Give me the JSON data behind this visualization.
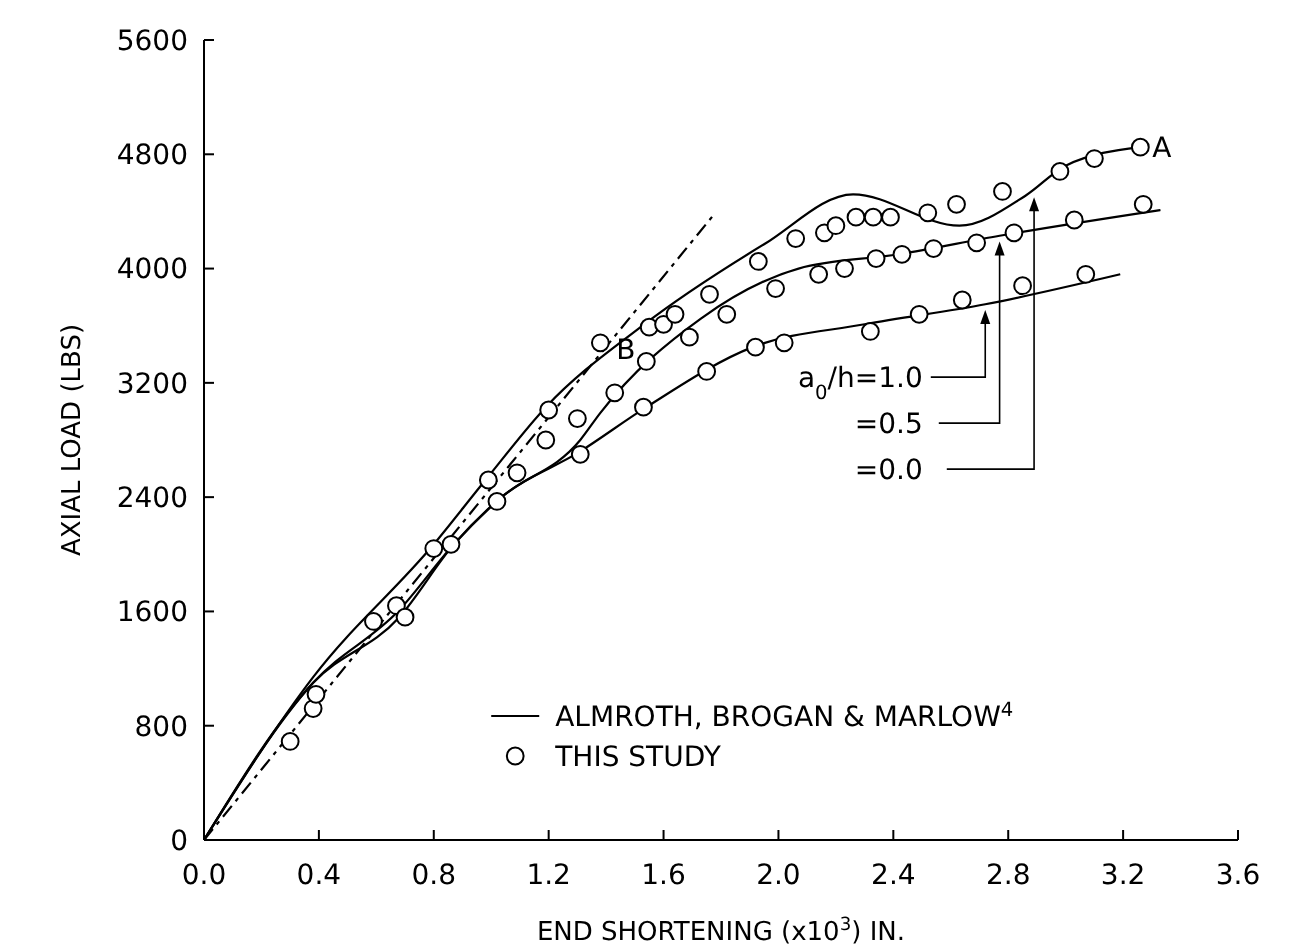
{
  "chart_data": {
    "type": "line",
    "xlabel": "END SHORTENING (x10$^{3}$) IN.",
    "ylabel": "AXIAL LOAD (LBS)",
    "xlim": [
      0,
      3.6
    ],
    "ylim": [
      0,
      5600
    ],
    "xticks": [
      {
        "value": 0,
        "label": "0.0"
      },
      0.4,
      0.8,
      1.2,
      1.6,
      {
        "value": 2,
        "label": "2.0"
      },
      2.4,
      2.8,
      3.2,
      3.6
    ],
    "yticks": [
      0,
      800,
      1600,
      2400,
      3200,
      4000,
      4800,
      5600
    ],
    "grid": false,
    "legend": "bottom",
    "line_style": "solid",
    "series": [
      {
        "name": "ALMROTH, BROGAN & MARLOW$^{4}$",
        "color": "#000000",
        "x": [
          0,
          0.38,
          0.68,
          0.87,
          1.03,
          1.31,
          1.54,
          1.91,
          2.3,
          2.72,
          3.19
        ],
        "values": [
          0,
          1100,
          1560,
          2070,
          2390,
          2720,
          3030,
          3450,
          3610,
          3750,
          3960
        ]
      },
      {
        "color": "#000000",
        "x": [
          0,
          0.38,
          0.68,
          0.87,
          1.03,
          1.31,
          1.38,
          1.73,
          2.07,
          2.42,
          2.77,
          3.33
        ],
        "values": [
          0,
          1100,
          1610,
          2070,
          2390,
          2800,
          2990,
          3650,
          4000,
          4100,
          4230,
          4410
        ]
      },
      {
        "color": "#000000",
        "x": [
          0,
          0.38,
          0.8,
          0.98,
          1.19,
          1.52,
          1.95,
          2.26,
          2.63,
          2.86,
          3.0,
          3.26
        ],
        "values": [
          0,
          1140,
          2070,
          2520,
          3030,
          3590,
          4170,
          4520,
          4300,
          4510,
          4720,
          4850
        ]
      },
      {
        "color": "#000000",
        "line_style": "dashed",
        "x": [
          0,
          1.78
        ],
        "values": [
          0,
          4390
        ]
      },
      {
        "name": "THIS STUDY",
        "type": "scatter",
        "marker": "circle",
        "color": "#000000",
        "x": [
          0.3,
          0.38,
          0.39,
          0.59,
          0.67,
          0.7,
          0.8,
          0.86,
          0.99,
          1.02,
          1.09,
          1.31,
          1.19,
          1.2,
          1.3,
          1.43,
          1.38,
          1.53,
          1.54,
          1.55,
          1.6,
          1.64,
          1.69,
          1.75,
          1.76,
          1.82,
          1.93,
          1.92,
          1.99,
          2.02,
          2.06,
          2.14,
          2.16,
          2.2,
          2.23,
          2.27,
          2.33,
          2.32,
          2.34,
          2.39,
          2.43,
          2.49,
          2.52,
          2.54,
          2.62,
          2.64,
          2.69,
          2.78,
          2.82,
          2.85,
          2.98,
          3.03,
          3.07,
          3.1,
          3.26,
          3.27
        ],
        "values": [
          690,
          920,
          1020,
          1530,
          1640,
          1560,
          2040,
          2070,
          2520,
          2370,
          2570,
          2700,
          2800,
          3010,
          2950,
          3130,
          3480,
          3030,
          3350,
          3590,
          3610,
          3680,
          3520,
          3280,
          3820,
          3680,
          4050,
          3450,
          3860,
          3480,
          4210,
          3960,
          4250,
          4300,
          4000,
          4360,
          4360,
          3560,
          4070,
          4360,
          4100,
          3680,
          4390,
          4140,
          4450,
          3780,
          4180,
          4540,
          4250,
          3880,
          4680,
          4340,
          3960,
          4770,
          4850,
          4450
        ]
      }
    ],
    "annotations": [
      {
        "text": "A",
        "x": 3.26,
        "y": 4850
      },
      {
        "text": "B",
        "x": 1.53,
        "y": 3560
      },
      {
        "text": "a$_{0}$/h=1.0",
        "x": 2.72,
        "y": 3710
      },
      {
        "text": "=0.5",
        "x": 2.77,
        "y": 4190
      },
      {
        "text": "=0.0",
        "x": 2.89,
        "y": 4500
      }
    ]
  }
}
